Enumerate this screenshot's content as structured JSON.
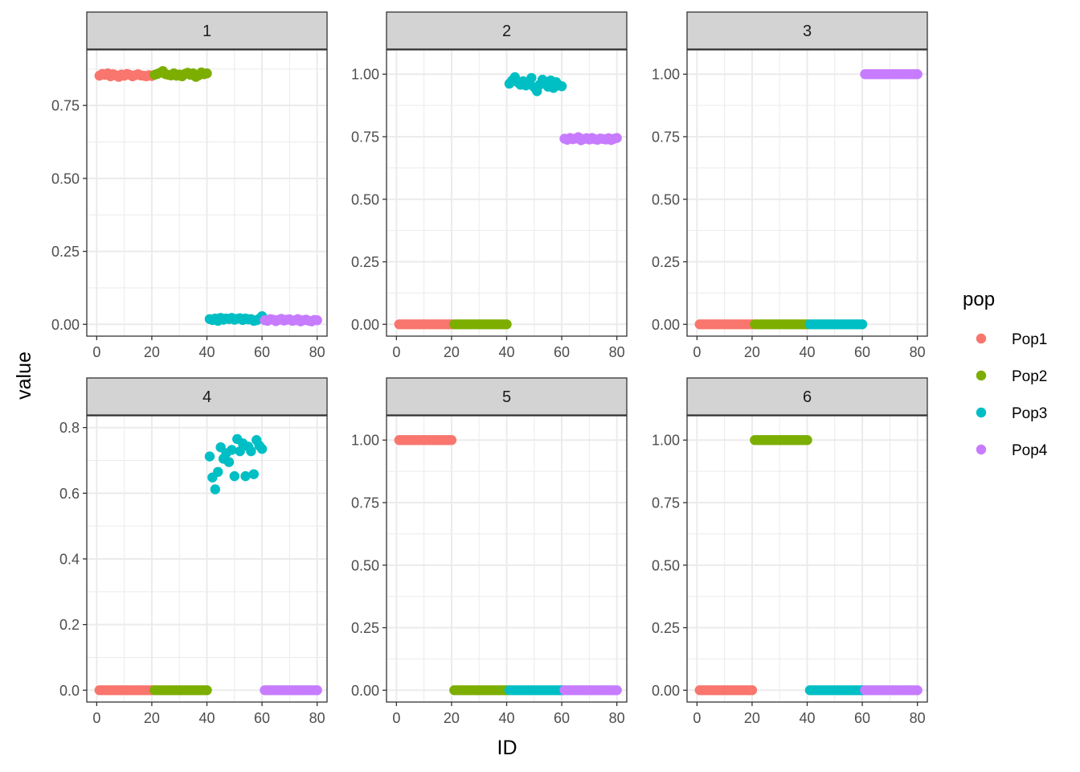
{
  "x_axis_label": "ID",
  "y_axis_label": "value",
  "legend": {
    "title": "pop",
    "items": [
      {
        "label": "Pop1",
        "color": "#F8766D"
      },
      {
        "label": "Pop2",
        "color": "#7CAE00"
      },
      {
        "label": "Pop3",
        "color": "#00BFC4"
      },
      {
        "label": "Pop4",
        "color": "#C77CFF"
      }
    ]
  },
  "chart_data": {
    "type": "scatter",
    "facet_by": "cluster",
    "x_ticks": [
      0,
      20,
      40,
      60,
      80
    ],
    "xlim": [
      0,
      80
    ],
    "grid": true,
    "legend_position": "right",
    "panels": [
      {
        "strip": "1",
        "ylim": [
          0,
          0.9
        ],
        "y_ticks": [
          "0.00",
          "0.25",
          "0.50",
          "0.75"
        ],
        "series": [
          {
            "name": "Pop1",
            "x_range": [
              1,
              20
            ],
            "values": [
              0.852,
              0.858,
              0.855,
              0.86,
              0.85,
              0.857,
              0.853,
              0.848,
              0.856,
              0.852,
              0.858,
              0.855,
              0.85,
              0.854,
              0.857,
              0.853,
              0.852,
              0.85,
              0.854,
              0.851
            ]
          },
          {
            "name": "Pop2",
            "x_range": [
              21,
              40
            ],
            "values": [
              0.855,
              0.858,
              0.862,
              0.868,
              0.857,
              0.855,
              0.853,
              0.86,
              0.852,
              0.856,
              0.85,
              0.858,
              0.862,
              0.855,
              0.86,
              0.848,
              0.853,
              0.863,
              0.857,
              0.86
            ]
          },
          {
            "name": "Pop3",
            "x_range": [
              41,
              60
            ],
            "values": [
              0.018,
              0.015,
              0.02,
              0.012,
              0.022,
              0.016,
              0.02,
              0.018,
              0.022,
              0.016,
              0.019,
              0.021,
              0.015,
              0.02,
              0.017,
              0.018,
              0.012,
              0.014,
              0.019,
              0.028
            ]
          },
          {
            "name": "Pop4",
            "x_range": [
              61,
              80
            ],
            "values": [
              0.014,
              0.012,
              0.018,
              0.016,
              0.011,
              0.015,
              0.019,
              0.013,
              0.016,
              0.017,
              0.012,
              0.014,
              0.018,
              0.01,
              0.014,
              0.016,
              0.012,
              0.01,
              0.015,
              0.014
            ]
          }
        ]
      },
      {
        "strip": "2",
        "ylim": [
          0,
          1.05
        ],
        "y_ticks": [
          "0.00",
          "0.25",
          "0.50",
          "0.75",
          "1.00"
        ],
        "series": [
          {
            "name": "Pop1",
            "x_range": [
              1,
              20
            ],
            "values": [
              0,
              0,
              0,
              0,
              0,
              0,
              0,
              0,
              0,
              0,
              0,
              0,
              0,
              0,
              0,
              0,
              0,
              0,
              0,
              0
            ]
          },
          {
            "name": "Pop2",
            "x_range": [
              21,
              40
            ],
            "values": [
              0,
              0,
              0,
              0,
              0,
              0,
              0,
              0,
              0,
              0,
              0,
              0,
              0,
              0,
              0,
              0,
              0,
              0,
              0,
              0
            ]
          },
          {
            "name": "Pop3",
            "x_range": [
              41,
              60
            ],
            "values": [
              0.962,
              0.975,
              0.988,
              0.968,
              0.958,
              0.972,
              0.955,
              0.96,
              0.985,
              0.948,
              0.932,
              0.958,
              0.978,
              0.962,
              0.95,
              0.975,
              0.945,
              0.968,
              0.955,
              0.952
            ]
          },
          {
            "name": "Pop4",
            "x_range": [
              61,
              80
            ],
            "values": [
              0.742,
              0.738,
              0.745,
              0.74,
              0.743,
              0.748,
              0.736,
              0.741,
              0.744,
              0.739,
              0.745,
              0.74,
              0.738,
              0.743,
              0.741,
              0.739,
              0.744,
              0.737,
              0.742,
              0.745
            ]
          }
        ]
      },
      {
        "strip": "3",
        "ylim": [
          0,
          1.05
        ],
        "y_ticks": [
          "0.00",
          "0.25",
          "0.50",
          "0.75",
          "1.00"
        ],
        "series": [
          {
            "name": "Pop1",
            "x_range": [
              1,
              20
            ],
            "values": [
              0,
              0,
              0,
              0,
              0,
              0,
              0,
              0,
              0,
              0,
              0,
              0,
              0,
              0,
              0,
              0,
              0,
              0,
              0,
              0
            ]
          },
          {
            "name": "Pop2",
            "x_range": [
              21,
              40
            ],
            "values": [
              0,
              0,
              0,
              0,
              0,
              0,
              0,
              0,
              0,
              0,
              0,
              0,
              0,
              0,
              0,
              0,
              0,
              0,
              0,
              0
            ]
          },
          {
            "name": "Pop3",
            "x_range": [
              41,
              60
            ],
            "values": [
              0,
              0,
              0,
              0,
              0,
              0,
              0,
              0,
              0,
              0,
              0,
              0,
              0,
              0,
              0,
              0,
              0,
              0,
              0,
              0
            ]
          },
          {
            "name": "Pop4",
            "x_range": [
              61,
              80
            ],
            "values": [
              1,
              1,
              1,
              1,
              1,
              1,
              1,
              1,
              1,
              1,
              1,
              1,
              1,
              1,
              1,
              1,
              1,
              1,
              1,
              1
            ]
          }
        ]
      },
      {
        "strip": "4",
        "ylim": [
          0,
          0.8
        ],
        "y_ticks": [
          "0.0",
          "0.2",
          "0.4",
          "0.6",
          "0.8"
        ],
        "series": [
          {
            "name": "Pop1",
            "x_range": [
              1,
              20
            ],
            "values": [
              0,
              0,
              0,
              0,
              0,
              0,
              0,
              0,
              0,
              0,
              0,
              0,
              0,
              0,
              0,
              0,
              0,
              0,
              0,
              0
            ]
          },
          {
            "name": "Pop2",
            "x_range": [
              21,
              40
            ],
            "values": [
              0,
              0,
              0,
              0,
              0,
              0,
              0,
              0,
              0,
              0,
              0,
              0,
              0,
              0,
              0,
              0,
              0,
              0,
              0,
              0
            ]
          },
          {
            "name": "Pop3",
            "x_range": [
              41,
              60
            ],
            "values": [
              0.712,
              0.648,
              0.612,
              0.665,
              0.74,
              0.705,
              0.722,
              0.695,
              0.732,
              0.652,
              0.765,
              0.728,
              0.752,
              0.652,
              0.742,
              0.728,
              0.658,
              0.762,
              0.745,
              0.735
            ]
          },
          {
            "name": "Pop4",
            "x_range": [
              61,
              80
            ],
            "values": [
              0,
              0,
              0,
              0,
              0,
              0,
              0,
              0,
              0,
              0,
              0,
              0,
              0,
              0,
              0,
              0,
              0,
              0,
              0,
              0
            ]
          }
        ]
      },
      {
        "strip": "5",
        "ylim": [
          0,
          1.05
        ],
        "y_ticks": [
          "0.00",
          "0.25",
          "0.50",
          "0.75",
          "1.00"
        ],
        "series": [
          {
            "name": "Pop1",
            "x_range": [
              1,
              20
            ],
            "values": [
              1,
              1,
              1,
              1,
              1,
              1,
              1,
              1,
              1,
              1,
              1,
              1,
              1,
              1,
              1,
              1,
              1,
              1,
              1,
              1
            ]
          },
          {
            "name": "Pop2",
            "x_range": [
              21,
              40
            ],
            "values": [
              0,
              0,
              0,
              0,
              0,
              0,
              0,
              0,
              0,
              0,
              0,
              0,
              0,
              0,
              0,
              0,
              0,
              0,
              0,
              0
            ]
          },
          {
            "name": "Pop3",
            "x_range": [
              41,
              60
            ],
            "values": [
              0,
              0,
              0,
              0,
              0,
              0,
              0,
              0,
              0,
              0,
              0,
              0,
              0,
              0,
              0,
              0,
              0,
              0,
              0,
              0
            ]
          },
          {
            "name": "Pop4",
            "x_range": [
              61,
              80
            ],
            "values": [
              0,
              0,
              0,
              0,
              0,
              0,
              0,
              0,
              0,
              0,
              0,
              0,
              0,
              0,
              0,
              0,
              0,
              0,
              0,
              0
            ]
          }
        ]
      },
      {
        "strip": "6",
        "ylim": [
          0,
          1.05
        ],
        "y_ticks": [
          "0.00",
          "0.25",
          "0.50",
          "0.75",
          "1.00"
        ],
        "series": [
          {
            "name": "Pop1",
            "x_range": [
              1,
              20
            ],
            "values": [
              0,
              0,
              0,
              0,
              0,
              0,
              0,
              0,
              0,
              0,
              0,
              0,
              0,
              0,
              0,
              0,
              0,
              0,
              0,
              0
            ]
          },
          {
            "name": "Pop2",
            "x_range": [
              21,
              40
            ],
            "values": [
              1,
              1,
              1,
              1,
              1,
              1,
              1,
              1,
              1,
              1,
              1,
              1,
              1,
              1,
              1,
              1,
              1,
              1,
              1,
              1
            ]
          },
          {
            "name": "Pop3",
            "x_range": [
              41,
              60
            ],
            "values": [
              0,
              0,
              0,
              0,
              0,
              0,
              0,
              0,
              0,
              0,
              0,
              0,
              0,
              0,
              0,
              0,
              0,
              0,
              0,
              0
            ]
          },
          {
            "name": "Pop4",
            "x_range": [
              61,
              80
            ],
            "values": [
              0,
              0,
              0,
              0,
              0,
              0,
              0,
              0,
              0,
              0,
              0,
              0,
              0,
              0,
              0,
              0,
              0,
              0,
              0,
              0
            ]
          }
        ]
      }
    ]
  }
}
